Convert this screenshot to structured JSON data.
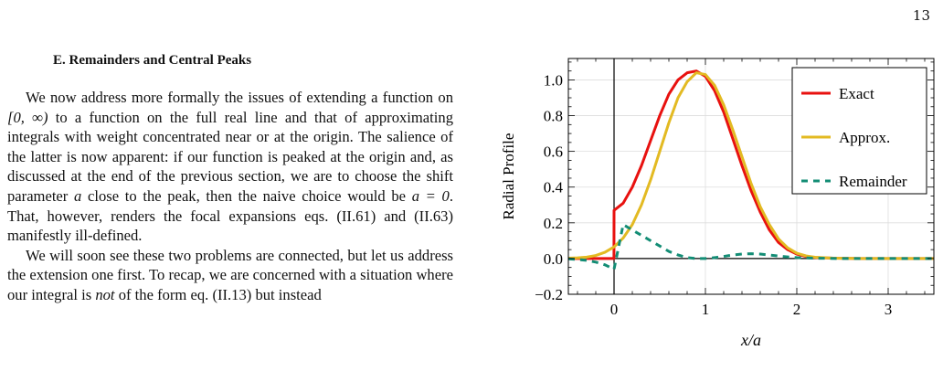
{
  "page_number": "13",
  "section": {
    "heading": "E.    Remainders and Central Peaks"
  },
  "paragraphs": [
    {
      "parts": [
        {
          "t": "We now address more formally the issues of extending a function on "
        },
        {
          "t": "[0, ∞)",
          "math": true
        },
        {
          "t": " to a function on the full real line and that of approximating integrals with weight concentrated near or at the origin. The salience of the latter is now apparent: if our function is peaked at the origin and, as discussed at the end of the previous section, we are to choose the shift parameter "
        },
        {
          "t": "a",
          "math": true
        },
        {
          "t": " close to the peak, then the naive choice would be "
        },
        {
          "t": "a = 0",
          "math": true
        },
        {
          "t": ". That, however, renders the focal expansions eqs. (II.61) and (II.63) manifestly ill-defined."
        }
      ]
    },
    {
      "parts": [
        {
          "t": "We will soon see these two problems are connected, but let us address the extension one first. To recap, we are concerned with a situation where our integral is "
        },
        {
          "t": "not",
          "em": true
        },
        {
          "t": " of the form eq. (II.13) but instead"
        }
      ]
    }
  ],
  "chart_data": {
    "type": "line",
    "xlabel": "x/a",
    "ylabel": "Radial Profile",
    "xlim": [
      -0.5,
      3.5
    ],
    "ylim": [
      -0.2,
      1.12
    ],
    "xticks": [
      0,
      1,
      2,
      3
    ],
    "yticks": [
      -0.2,
      0.0,
      0.2,
      0.4,
      0.6,
      0.8,
      1.0
    ],
    "xtick_labels": [
      "0",
      "1",
      "2",
      "3"
    ],
    "ytick_labels": [
      "−0.2",
      "0.0",
      "0.2",
      "0.4",
      "0.6",
      "0.8",
      "1.0"
    ],
    "grid": true,
    "legend_position": "top-right",
    "series": [
      {
        "name": "Exact",
        "color": "#e8110f",
        "dash": "solid",
        "x": [
          -0.5,
          -0.4,
          -0.3,
          -0.2,
          -0.1,
          -0.001,
          0.0,
          0.1,
          0.2,
          0.3,
          0.4,
          0.5,
          0.6,
          0.7,
          0.8,
          0.9,
          1.0,
          1.1,
          1.2,
          1.3,
          1.4,
          1.5,
          1.6,
          1.7,
          1.8,
          1.9,
          2.0,
          2.1,
          2.2,
          2.4,
          2.7,
          3.0,
          3.5
        ],
        "y": [
          0.0,
          0.0,
          0.0,
          0.0,
          0.0,
          0.0,
          0.27,
          0.31,
          0.4,
          0.52,
          0.66,
          0.8,
          0.92,
          1.0,
          1.04,
          1.05,
          1.02,
          0.94,
          0.82,
          0.67,
          0.52,
          0.38,
          0.26,
          0.16,
          0.09,
          0.05,
          0.025,
          0.012,
          0.006,
          0.002,
          0.0,
          0.0,
          0.0
        ]
      },
      {
        "name": "Approx.",
        "color": "#e3ba22",
        "dash": "solid",
        "x": [
          -0.5,
          -0.4,
          -0.3,
          -0.2,
          -0.1,
          0.0,
          0.1,
          0.2,
          0.3,
          0.4,
          0.5,
          0.6,
          0.7,
          0.8,
          0.9,
          1.0,
          1.1,
          1.2,
          1.3,
          1.4,
          1.5,
          1.6,
          1.7,
          1.8,
          1.9,
          2.0,
          2.1,
          2.2,
          2.4,
          2.7,
          3.0,
          3.5
        ],
        "y": [
          0.002,
          0.004,
          0.008,
          0.017,
          0.035,
          0.065,
          0.115,
          0.19,
          0.3,
          0.44,
          0.6,
          0.76,
          0.9,
          0.99,
          1.04,
          1.03,
          0.97,
          0.86,
          0.72,
          0.57,
          0.42,
          0.29,
          0.19,
          0.11,
          0.06,
          0.03,
          0.015,
          0.007,
          0.002,
          0.0,
          0.0,
          0.0
        ]
      },
      {
        "name": "Remainder",
        "color": "#138d75",
        "dash": "dashed",
        "x": [
          -0.5,
          -0.4,
          -0.3,
          -0.2,
          -0.1,
          0.0,
          0.1,
          0.2,
          0.3,
          0.4,
          0.5,
          0.6,
          0.7,
          0.8,
          0.9,
          1.0,
          1.1,
          1.2,
          1.3,
          1.4,
          1.5,
          1.6,
          1.7,
          1.8,
          1.9,
          2.0,
          2.2,
          2.5,
          3.0,
          3.5
        ],
        "y": [
          -0.002,
          -0.005,
          -0.01,
          -0.02,
          -0.035,
          -0.06,
          0.19,
          0.16,
          0.13,
          0.1,
          0.07,
          0.04,
          0.02,
          0.005,
          0.0,
          0.0,
          0.005,
          0.012,
          0.02,
          0.025,
          0.027,
          0.025,
          0.02,
          0.014,
          0.009,
          0.005,
          0.002,
          0.0,
          0.0,
          0.0
        ]
      }
    ]
  }
}
